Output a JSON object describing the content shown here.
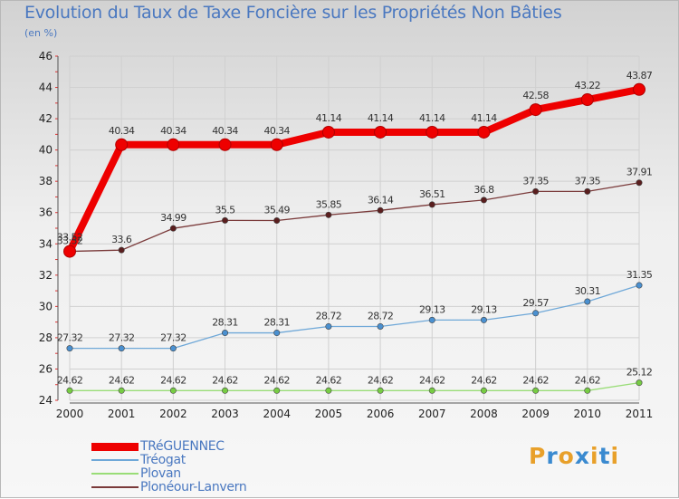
{
  "title": "Evolution du Taux de Taxe Foncière sur les Propriétés Non Bâties",
  "unit_label": "(en %)",
  "logo": {
    "text": "Proxiti",
    "letters": [
      "P",
      "r",
      "o",
      "x",
      "i",
      "t",
      "i"
    ],
    "colors": [
      "#e8a02a",
      "#3a8ad0",
      "#e8a02a",
      "#3a8ad0",
      "#e8a02a",
      "#3a8ad0",
      "#e8a02a"
    ]
  },
  "chart_data": {
    "type": "line",
    "title": "Evolution du Taux de Taxe Foncière sur les Propriétés Non Bâties",
    "xlabel": "",
    "ylabel": "(en %)",
    "x": [
      "2000",
      "2001",
      "2002",
      "2003",
      "2004",
      "2005",
      "2006",
      "2007",
      "2008",
      "2009",
      "2010",
      "2011"
    ],
    "ylim": [
      24,
      46
    ],
    "yticks": [
      24,
      26,
      28,
      30,
      32,
      34,
      36,
      38,
      40,
      42,
      44,
      46
    ],
    "grid": true,
    "series": [
      {
        "name": "TRéGUENNEC",
        "color": "#ee0000",
        "emphasis": true,
        "values": [
          33.52,
          40.34,
          40.34,
          40.34,
          40.34,
          41.14,
          41.14,
          41.14,
          41.14,
          42.58,
          43.22,
          43.87
        ],
        "labels": [
          "33.52",
          "40.34",
          "40.34",
          "40.34",
          "40.34",
          "41.14",
          "41.14",
          "41.14",
          "41.14",
          "42.58",
          "43.22",
          "43.87"
        ]
      },
      {
        "name": "Tréogat",
        "color": "#6fa8d8",
        "marker": "#4a90d0",
        "values": [
          27.32,
          27.32,
          27.32,
          28.31,
          28.31,
          28.72,
          28.72,
          29.13,
          29.13,
          29.57,
          30.31,
          31.35
        ],
        "labels": [
          "27.32",
          "27.32",
          "27.32",
          "28.31",
          "28.31",
          "28.72",
          "28.72",
          "29.13",
          "29.13",
          "29.57",
          "30.31",
          "31.35"
        ]
      },
      {
        "name": "Plovan",
        "color": "#99dd77",
        "marker": "#77cc44",
        "values": [
          24.62,
          24.62,
          24.62,
          24.62,
          24.62,
          24.62,
          24.62,
          24.62,
          24.62,
          24.62,
          24.62,
          25.12
        ],
        "labels": [
          "24.62",
          "24.62",
          "24.62",
          "24.62",
          "24.62",
          "24.62",
          "24.62",
          "24.62",
          "24.62",
          "24.62",
          "24.62",
          "25.12"
        ]
      },
      {
        "name": "Plonéour-Lanvern",
        "color": "#7a3a3a",
        "marker": "#5a1e1e",
        "values": [
          33.52,
          33.6,
          34.99,
          35.5,
          35.49,
          35.85,
          36.14,
          36.51,
          36.8,
          37.35,
          37.35,
          37.91
        ],
        "labels": [
          "33.52",
          "33.6",
          "34.99",
          "35.5",
          "35.49",
          "35.85",
          "36.14",
          "36.51",
          "36.8",
          "37.35",
          "37.35",
          "37.91"
        ]
      }
    ]
  }
}
